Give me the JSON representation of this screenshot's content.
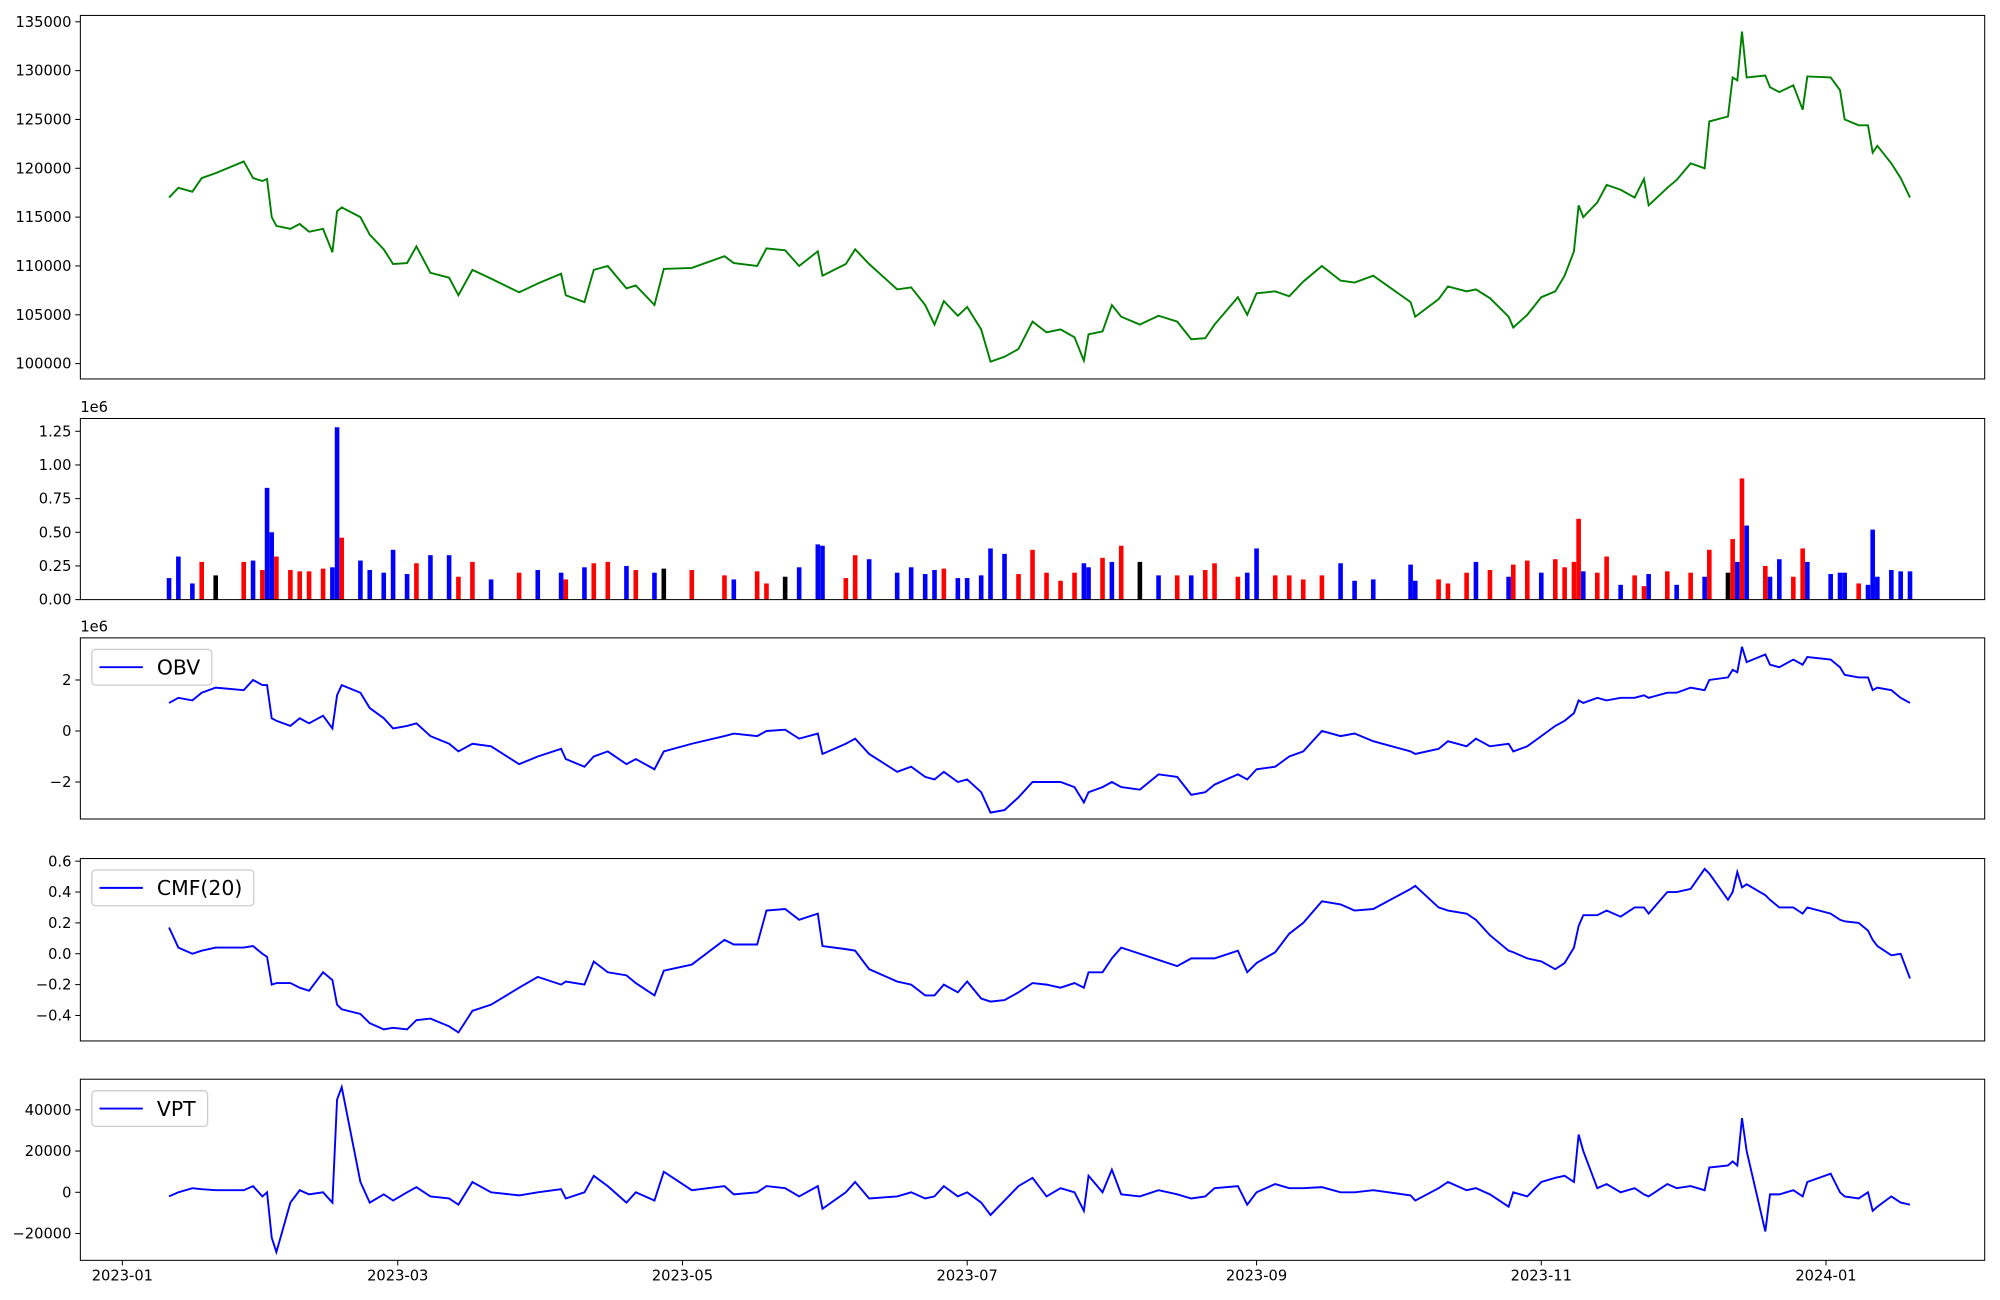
{
  "chart_data": [
    {
      "type": "line",
      "series": [
        {
          "color": "green",
          "values": [
            117000,
            118000,
            117600,
            119000,
            119500,
            120700,
            119000,
            118700,
            118900,
            115000,
            114100,
            113800,
            114300,
            113500,
            113800,
            111400,
            115600,
            116000,
            115000,
            113200,
            111700,
            110200,
            110300,
            112000,
            109300,
            108800,
            107000,
            109600,
            108700,
            107300,
            108200,
            109200,
            107000,
            106300,
            109600,
            110000,
            107700,
            108000,
            106000,
            109700,
            109800,
            111000,
            110300,
            110000,
            111800,
            111600,
            110000,
            111500,
            109000,
            110200,
            111700,
            110200,
            107600,
            107800,
            106000,
            104000,
            106400,
            104900,
            105800,
            103500,
            100200,
            100700,
            101500,
            104300,
            103200,
            103500,
            102700,
            100300,
            103000,
            103300,
            106000,
            104800,
            104000,
            104900,
            104300,
            102500,
            102600,
            104000,
            106800,
            105000,
            107200,
            107400,
            106900,
            108400,
            110000,
            108500,
            108300,
            109000,
            106300,
            104800,
            106600,
            107900,
            107400,
            107600,
            106700,
            104800,
            103700,
            105000,
            106800,
            107400,
            109000,
            111500,
            116200,
            115000,
            116500,
            118300,
            117800,
            117000,
            118900,
            116200,
            118000,
            118800,
            120500,
            120000,
            124800,
            125300,
            129300,
            129000,
            134000,
            129300,
            129500,
            128300,
            127800,
            128500,
            126000,
            129400,
            129300,
            128000,
            125000,
            124400,
            124400,
            121600,
            122300,
            120500,
            119000,
            117000
          ]
        }
      ],
      "ylim": [
        98430,
        135650
      ],
      "yticks": [
        100000,
        105000,
        110000,
        115000,
        120000,
        125000,
        130000,
        135000
      ]
    },
    {
      "type": "bar",
      "offset_label": "1e6",
      "series": [
        {
          "colors": [
            "blue",
            "blue",
            "blue",
            "red",
            "black",
            "red",
            "blue",
            "red",
            "blue",
            "blue",
            "red",
            "red",
            "red",
            "red",
            "red",
            "blue",
            "blue",
            "red",
            "blue",
            "blue",
            "blue",
            "blue",
            "blue",
            "red",
            "blue",
            "blue",
            "red",
            "red",
            "blue",
            "red",
            "blue",
            "blue",
            "red",
            "blue",
            "red",
            "red",
            "blue",
            "red",
            "blue",
            "black",
            "red",
            "red",
            "blue",
            "red",
            "red",
            "black",
            "blue",
            "blue",
            "blue",
            "red",
            "red",
            "blue",
            "blue",
            "blue",
            "blue",
            "blue",
            "red",
            "blue",
            "blue",
            "blue",
            "blue",
            "blue",
            "red",
            "red",
            "red",
            "red",
            "red",
            "blue",
            "blue",
            "red",
            "blue",
            "red",
            "black",
            "blue",
            "red",
            "blue",
            "red",
            "red",
            "red",
            "blue",
            "blue",
            "red",
            "red",
            "red",
            "red",
            "blue",
            "blue",
            "blue",
            "blue",
            "blue",
            "red",
            "red",
            "red",
            "blue",
            "red",
            "blue",
            "red",
            "red",
            "blue",
            "red",
            "red",
            "red",
            "red",
            "blue",
            "red",
            "red",
            "blue",
            "red",
            "red",
            "blue",
            "red",
            "blue",
            "red",
            "blue",
            "red",
            "black",
            "red",
            "blue",
            "red",
            "blue",
            "red",
            "blue",
            "blue",
            "red",
            "red",
            "blue",
            "blue",
            "blue",
            "blue",
            "red",
            "blue",
            "blue",
            "blue",
            "blue",
            "blue",
            "blue"
          ],
          "values": [
            0.16,
            0.32,
            0.12,
            0.28,
            0.18,
            0.28,
            0.29,
            0.22,
            0.83,
            0.5,
            0.32,
            0.22,
            0.21,
            0.21,
            0.23,
            0.24,
            1.28,
            0.46,
            0.29,
            0.22,
            0.2,
            0.37,
            0.19,
            0.27,
            0.33,
            0.33,
            0.17,
            0.28,
            0.15,
            0.2,
            0.22,
            0.2,
            0.15,
            0.24,
            0.27,
            0.28,
            0.25,
            0.22,
            0.2,
            0.23,
            0.22,
            0.18,
            0.15,
            0.21,
            0.12,
            0.17,
            0.24,
            0.41,
            0.4,
            0.16,
            0.33,
            0.3,
            0.2,
            0.24,
            0.19,
            0.22,
            0.23,
            0.16,
            0.16,
            0.18,
            0.38,
            0.34,
            0.19,
            0.37,
            0.2,
            0.14,
            0.2,
            0.27,
            0.24,
            0.31,
            0.28,
            0.4,
            0.28,
            0.18,
            0.18,
            0.18,
            0.22,
            0.27,
            0.17,
            0.2,
            0.38,
            0.18,
            0.18,
            0.15,
            0.18,
            0.27,
            0.14,
            0.15,
            0.26,
            0.14,
            0.15,
            0.12,
            0.2,
            0.28,
            0.22,
            0.17,
            0.26,
            0.29,
            0.2,
            0.3,
            0.24,
            0.28,
            0.6,
            0.21,
            0.2,
            0.32,
            0.11,
            0.18,
            0.1,
            0.19,
            0.21,
            0.11,
            0.2,
            0.17,
            0.37,
            0.2,
            0.45,
            0.28,
            0.9,
            0.55,
            0.25,
            0.17,
            0.3,
            0.17,
            0.38,
            0.28,
            0.19,
            0.2,
            0.2,
            0.12,
            0.11,
            0.52,
            0.17,
            0.22,
            0.21,
            0.21
          ]
        }
      ],
      "ylim": [
        0,
        1.345
      ],
      "yticks": [
        {
          "value": 0,
          "label": "0.00"
        },
        0.25,
        {
          "value": 0.5,
          "label": "0.50"
        },
        0.75,
        {
          "value": 1,
          "label": "1.00"
        },
        1.25
      ]
    },
    {
      "type": "line",
      "offset_label": "1e6",
      "legend": "upper left",
      "series": [
        {
          "name": "OBV",
          "color": "blue",
          "values": [
            1.1,
            1.3,
            1.2,
            1.5,
            1.7,
            1.6,
            2.0,
            1.8,
            1.8,
            0.5,
            0.4,
            0.2,
            0.5,
            0.3,
            0.6,
            0.1,
            1.4,
            1.8,
            1.5,
            0.9,
            0.5,
            0.1,
            0.2,
            0.3,
            -0.2,
            -0.5,
            -0.8,
            -0.5,
            -0.6,
            -1.3,
            -1.0,
            -0.7,
            -1.1,
            -1.4,
            -1.0,
            -0.8,
            -1.3,
            -1.1,
            -1.5,
            -0.8,
            -0.5,
            -0.2,
            -0.1,
            -0.2,
            0.0,
            0.05,
            -0.3,
            -0.1,
            -0.9,
            -0.5,
            -0.3,
            -0.9,
            -1.6,
            -1.4,
            -1.8,
            -1.9,
            -1.6,
            -2.0,
            -1.9,
            -2.4,
            -3.2,
            -3.1,
            -2.6,
            -2.0,
            -2.0,
            -2.0,
            -2.2,
            -2.8,
            -2.4,
            -2.2,
            -2.0,
            -2.2,
            -2.3,
            -1.7,
            -1.8,
            -2.5,
            -2.4,
            -2.1,
            -1.7,
            -1.9,
            -1.5,
            -1.4,
            -1.0,
            -0.8,
            0.0,
            -0.2,
            -0.1,
            -0.4,
            -0.8,
            -0.9,
            -0.7,
            -0.4,
            -0.6,
            -0.3,
            -0.6,
            -0.5,
            -0.8,
            -0.6,
            -0.2,
            0.2,
            0.4,
            0.7,
            1.2,
            1.1,
            1.3,
            1.2,
            1.3,
            1.3,
            1.4,
            1.3,
            1.5,
            1.5,
            1.7,
            1.6,
            2.0,
            2.1,
            2.4,
            2.3,
            3.3,
            2.7,
            3.0,
            2.6,
            2.5,
            2.8,
            2.6,
            2.9,
            2.8,
            2.5,
            2.2,
            2.1,
            2.1,
            1.6,
            1.7,
            1.6,
            1.3,
            1.1
          ]
        }
      ],
      "ylim": [
        -3.45,
        3.65
      ],
      "yticks": [
        {
          "value": -2,
          "label": "−2"
        },
        0,
        2
      ]
    },
    {
      "type": "line",
      "legend": "upper left",
      "series": [
        {
          "name": "CMF(20)",
          "color": "blue",
          "values": [
            0.17,
            0.04,
            0.0,
            0.02,
            0.04,
            0.04,
            0.05,
            0.0,
            -0.02,
            -0.2,
            -0.19,
            -0.19,
            -0.22,
            -0.24,
            -0.12,
            -0.17,
            -0.33,
            -0.36,
            -0.39,
            -0.45,
            -0.49,
            -0.48,
            -0.49,
            -0.43,
            -0.42,
            -0.47,
            -0.51,
            -0.37,
            -0.33,
            -0.22,
            -0.15,
            -0.2,
            -0.18,
            -0.2,
            -0.05,
            -0.12,
            -0.14,
            -0.19,
            -0.27,
            -0.11,
            -0.07,
            0.09,
            0.06,
            0.06,
            0.28,
            0.29,
            0.22,
            0.26,
            0.05,
            0.03,
            0.02,
            -0.1,
            -0.18,
            -0.2,
            -0.27,
            -0.27,
            -0.2,
            -0.25,
            -0.18,
            -0.29,
            -0.31,
            -0.3,
            -0.25,
            -0.19,
            -0.2,
            -0.22,
            -0.19,
            -0.22,
            -0.12,
            -0.12,
            -0.03,
            0.04,
            0.0,
            -0.04,
            -0.08,
            -0.03,
            -0.03,
            -0.03,
            0.02,
            -0.12,
            -0.06,
            0.01,
            0.13,
            0.2,
            0.34,
            0.32,
            0.28,
            0.29,
            0.42,
            0.44,
            0.3,
            0.28,
            0.26,
            0.22,
            0.12,
            0.02,
            0.01,
            -0.03,
            -0.05,
            -0.1,
            -0.06,
            0.04,
            0.18,
            0.25,
            0.25,
            0.28,
            0.24,
            0.3,
            0.3,
            0.26,
            0.4,
            0.4,
            0.42,
            0.55,
            0.52,
            0.35,
            0.4,
            0.53,
            0.43,
            0.45,
            0.38,
            0.35,
            0.3,
            0.3,
            0.26,
            0.3,
            0.26,
            0.22,
            0.21,
            0.2,
            0.15,
            0.09,
            0.05,
            -0.01,
            0.0,
            -0.16
          ]
        }
      ],
      "ylim": [
        -0.565,
        0.617
      ],
      "yticks": [
        {
          "value": -0.4,
          "label": "−0.4"
        },
        {
          "value": -0.2,
          "label": "−0.2"
        },
        {
          "value": 0,
          "label": "0.0"
        },
        0.2,
        0.4,
        0.6
      ]
    },
    {
      "type": "line",
      "legend": "upper left",
      "series": [
        {
          "name": "VPT",
          "color": "blue",
          "values": [
            -2000,
            0,
            2000,
            1500,
            1000,
            1000,
            3000,
            -2000,
            0,
            -22000,
            -29000,
            -5000,
            1000,
            -1000,
            0,
            -5000,
            45000,
            51000,
            5000,
            -5000,
            -1000,
            -4000,
            0,
            2500,
            -2000,
            -3000,
            -6000,
            5000,
            0,
            -1500,
            0,
            1500,
            -3000,
            0,
            8000,
            3000,
            -5000,
            0,
            -4000,
            10000,
            1000,
            3000,
            -1000,
            0,
            3000,
            2000,
            -2000,
            3000,
            -8000,
            0,
            5000,
            -3000,
            -2000,
            0,
            -3000,
            -2000,
            3000,
            -2000,
            0,
            -5000,
            -11000,
            -4000,
            3000,
            7000,
            -2000,
            2000,
            0,
            -9000,
            8000,
            0,
            11000,
            -1000,
            -2000,
            1000,
            -1000,
            -3000,
            -2000,
            2000,
            3000,
            -6000,
            0,
            4000,
            2000,
            2000,
            2500,
            0,
            0,
            1000,
            -1500,
            -4000,
            2000,
            5000,
            1000,
            2000,
            -1000,
            -7000,
            0,
            -2000,
            5000,
            7000,
            8000,
            5000,
            28000,
            20000,
            2000,
            4000,
            0,
            2000,
            -1000,
            -2000,
            4000,
            2000,
            3000,
            1000,
            12000,
            13000,
            15000,
            13000,
            36000,
            20000,
            -19000,
            -1000,
            -1000,
            1000,
            -2000,
            5000,
            9000,
            0,
            -2000,
            -3000,
            0,
            -9000,
            -7000,
            -2000,
            -5000,
            -6000
          ]
        }
      ],
      "ylim": [
        -33000,
        54850
      ],
      "yticks": [
        {
          "value": -20000,
          "label": "−20000"
        },
        0,
        20000,
        40000
      ],
      "x": [
        10,
        12,
        15,
        17,
        20,
        26,
        28,
        30,
        31,
        32,
        33,
        36,
        38,
        40,
        43,
        45,
        46,
        47,
        51,
        53,
        56,
        58,
        61,
        63,
        66,
        70,
        72,
        75,
        79,
        85,
        89,
        94,
        95,
        99,
        101,
        104,
        108,
        110,
        114,
        116,
        122,
        129,
        131,
        136,
        138,
        142,
        145,
        149,
        150,
        155,
        157,
        160,
        166,
        169,
        172,
        174,
        176,
        179,
        181,
        184,
        186,
        189,
        192,
        195,
        198,
        201,
        204,
        206,
        207,
        210,
        212,
        214,
        218,
        222,
        226,
        229,
        232,
        234,
        239,
        241,
        243,
        247,
        250,
        253,
        257,
        261,
        264,
        268,
        276,
        277,
        282,
        284,
        288,
        290,
        293,
        297,
        298,
        301,
        304,
        307,
        309,
        311,
        312,
        313,
        316,
        318,
        321,
        324,
        326,
        327,
        331,
        333,
        336,
        339,
        340,
        344,
        345,
        346,
        347,
        348,
        352,
        353,
        355,
        358,
        360,
        361,
        366,
        368,
        369,
        372,
        374,
        375,
        376,
        379,
        381,
        383
      ],
      "xlim": [
        -9,
        399
      ],
      "xticks": [
        {
          "value": 0,
          "label": "2023-01"
        },
        {
          "value": 59,
          "label": "2023-03"
        },
        {
          "value": 120,
          "label": "2023-05"
        },
        {
          "value": 181,
          "label": "2023-07"
        },
        {
          "value": 243,
          "label": "2023-09"
        },
        {
          "value": 304,
          "label": "2023-11"
        },
        {
          "value": 365,
          "label": "2024-01"
        }
      ]
    }
  ]
}
